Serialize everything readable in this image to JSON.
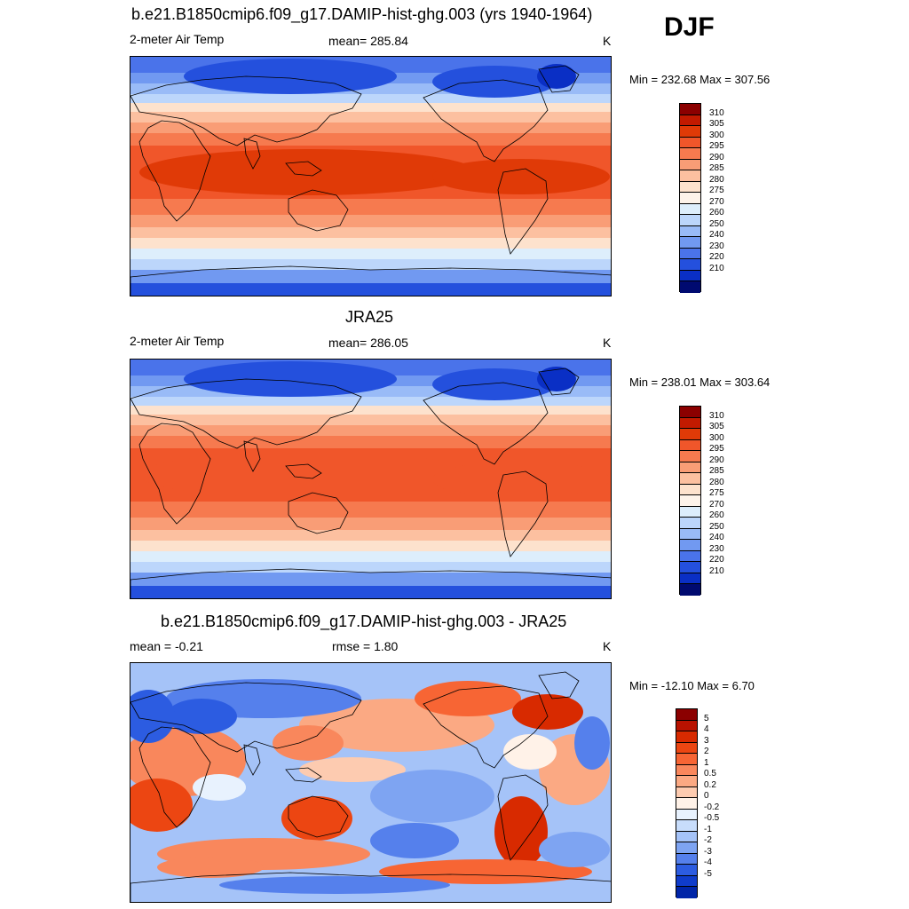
{
  "season": "DJF",
  "colorbars": {
    "abs_colors": [
      "#fefefe",
      "#8b0000",
      "#c21a00",
      "#e03a07",
      "#f0562a",
      "#f67a4f",
      "#f99d76",
      "#fcc0a0",
      "#fde2cd",
      "#ddeefc",
      "#bcd6fb",
      "#99bbf7",
      "#7199f1",
      "#4a73ea",
      "#2450dd",
      "#0a2fc5",
      "#001c98",
      "#000a70"
    ],
    "diff_colors": [
      "#8b0000",
      "#b81200",
      "#d82a00",
      "#ec4612",
      "#f76534",
      "#f9875c",
      "#fba983",
      "#fdcbb0",
      "#fff2e8",
      "#e8f2fe",
      "#c8ddfb",
      "#a5c3f8",
      "#7ea4f2",
      "#5580ec",
      "#2c5ce1",
      "#0f3ccb",
      "#0025a8",
      "#001584"
    ],
    "abs_labels": [
      "310",
      "305",
      "300",
      "295",
      "290",
      "285",
      "280",
      "275",
      "270",
      "260",
      "250",
      "240",
      "230",
      "220",
      "210"
    ],
    "diff_labels": [
      "5",
      "4",
      "3",
      "2",
      "1",
      "0.5",
      "0.2",
      "0",
      "-0.2",
      "-0.5",
      "-1",
      "-2",
      "-3",
      "-4",
      "-5"
    ]
  },
  "chart_data": [
    {
      "type": "heatmap",
      "title": "b.e21.B1850cmip6.f09_g17.DAMIP-hist-ghg.003 (yrs 1940-1964)",
      "left_label": "2-meter Air Temp",
      "center_label": "mean= 285.84",
      "units": "K",
      "minmax": "Min = 232.68 Max = 307.56",
      "mean": 285.84,
      "min": 232.68,
      "max": 307.56,
      "levels": [
        210,
        220,
        230,
        240,
        250,
        260,
        270,
        275,
        280,
        285,
        290,
        295,
        300,
        305,
        310
      ]
    },
    {
      "type": "heatmap",
      "title": "JRA25",
      "left_label": "2-meter Air Temp",
      "center_label": "mean= 286.05",
      "units": "K",
      "minmax": "Min = 238.01 Max = 303.64",
      "mean": 286.05,
      "min": 238.01,
      "max": 303.64,
      "levels": [
        210,
        220,
        230,
        240,
        250,
        260,
        270,
        275,
        280,
        285,
        290,
        295,
        300,
        305,
        310
      ]
    },
    {
      "type": "heatmap",
      "title": "b.e21.B1850cmip6.f09_g17.DAMIP-hist-ghg.003 - JRA25",
      "left_label": "mean =  -0.21",
      "center_label": "rmse =   1.80",
      "units": "K",
      "minmax": "Min = -12.10 Max =   6.70",
      "mean": -0.21,
      "rmse": 1.8,
      "min": -12.1,
      "max": 6.7,
      "levels": [
        -5,
        -4,
        -3,
        -2,
        -1,
        -0.5,
        -0.2,
        0,
        0.2,
        0.5,
        1,
        2,
        3,
        4,
        5
      ]
    }
  ]
}
